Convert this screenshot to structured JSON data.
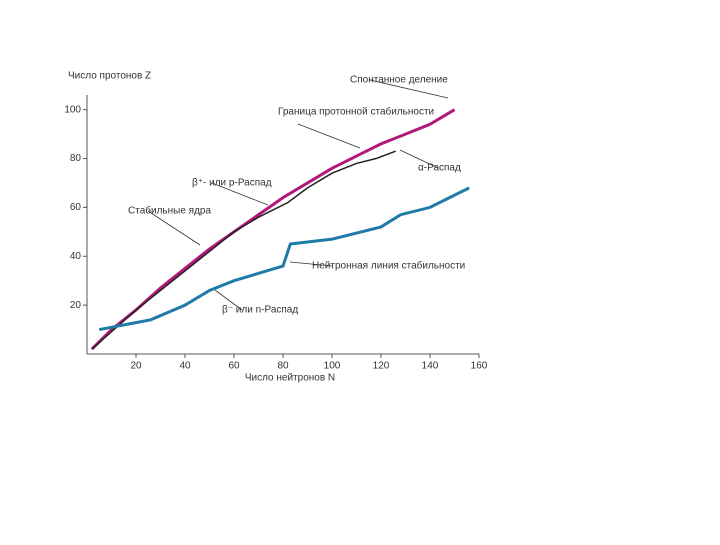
{
  "chart_data": {
    "type": "line",
    "y_label": "Число протонов Z",
    "x_label": "Число нейтронов N",
    "xlim": [
      0,
      160
    ],
    "ylim": [
      0,
      106
    ],
    "xticks": [
      20,
      40,
      60,
      80,
      100,
      120,
      140,
      160
    ],
    "yticks": [
      20,
      40,
      60,
      80,
      100
    ],
    "annotations": [
      "Спонтанное деление",
      "Граница протонной стабильности",
      "α-Распад",
      "β⁺- или p-Распад",
      "Стабильные ядра",
      "Нейтронная линия стабильности",
      "β⁻ или n-Распад"
    ],
    "series": [
      {
        "name": "Граница протонной стабильности",
        "color": "#b0197a",
        "x": [
          2,
          10,
          20,
          30,
          40,
          50,
          60,
          70,
          80,
          90,
          100,
          110,
          120,
          130,
          140,
          150
        ],
        "values": [
          2,
          10,
          18,
          27,
          35,
          43,
          50,
          57,
          64,
          70,
          76,
          81,
          86,
          90,
          94,
          100
        ]
      },
      {
        "name": "Стабильные ядра",
        "color": "#222222",
        "x": [
          2,
          20,
          30,
          40,
          50,
          60,
          70,
          82,
          90,
          100,
          110,
          118,
          126
        ],
        "values": [
          2,
          18,
          26,
          34,
          42,
          50,
          56,
          62,
          68,
          74,
          78,
          80,
          83
        ]
      },
      {
        "name": "Нейтронная линия стабильности",
        "color": "#1f7aa8",
        "x": [
          5,
          26,
          40,
          50,
          60,
          80,
          83,
          100,
          120,
          128,
          140,
          156
        ],
        "values": [
          10,
          14,
          20,
          26,
          30,
          36,
          45,
          47,
          52,
          57,
          60,
          68
        ]
      }
    ]
  }
}
